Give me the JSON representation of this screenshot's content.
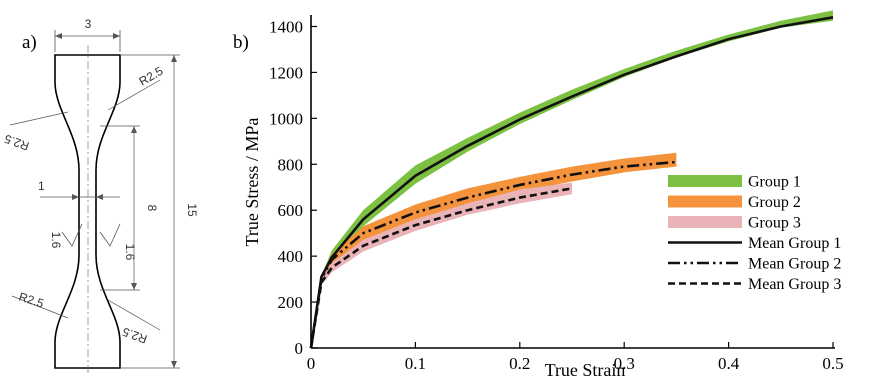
{
  "panel_a": {
    "label": "a)",
    "dims": {
      "top_width": "3",
      "neck_width": "1",
      "gauge_length": "8",
      "total_length": "15",
      "radius_upper_right": "R2.5",
      "radius_upper_left": "R2.5",
      "radius_lower_left": "R2.5",
      "radius_lower_right": "R2.5",
      "roughness_left": "1.6",
      "roughness_right": "1.6"
    }
  },
  "panel_b": {
    "label": "b)"
  },
  "colors": {
    "group1_band": "#7dc142",
    "group2_band": "#f5933c",
    "group3_band": "#e9b3b8",
    "mean_line": "#111111"
  },
  "chart_data": {
    "type": "line",
    "title": "",
    "xlabel": "True Strain",
    "ylabel": "True Stress / MPa",
    "xlim": [
      0,
      0.5
    ],
    "ylim": [
      0,
      1450
    ],
    "x_ticks": [
      "0",
      "0.1",
      "0.2",
      "0.3",
      "0.4",
      "0.5"
    ],
    "y_ticks": [
      "0",
      "200",
      "400",
      "600",
      "800",
      "1000",
      "1200",
      "1400"
    ],
    "legend_position": "bottom-right",
    "bands": [
      {
        "name": "Group 1",
        "color": "#7dc142",
        "x": [
          0.01,
          0.02,
          0.05,
          0.1,
          0.15,
          0.2,
          0.25,
          0.3,
          0.35,
          0.4,
          0.45,
          0.5
        ],
        "lower": [
          300,
          380,
          530,
          715,
          855,
          975,
          1080,
          1180,
          1265,
          1335,
          1395,
          1425
        ],
        "upper": [
          315,
          425,
          600,
          795,
          915,
          1025,
          1125,
          1215,
          1295,
          1365,
          1425,
          1470
        ]
      },
      {
        "name": "Group 2",
        "color": "#f5933c",
        "x": [
          0.01,
          0.02,
          0.05,
          0.1,
          0.15,
          0.2,
          0.25,
          0.3,
          0.35
        ],
        "lower": [
          290,
          360,
          470,
          560,
          625,
          680,
          725,
          765,
          790
        ],
        "upper": [
          315,
          410,
          530,
          625,
          695,
          745,
          790,
          825,
          850
        ]
      },
      {
        "name": "Group 3",
        "color": "#e9b3b8",
        "x": [
          0.01,
          0.02,
          0.05,
          0.1,
          0.15,
          0.2,
          0.25
        ],
        "lower": [
          275,
          330,
          420,
          510,
          580,
          630,
          670
        ],
        "upper": [
          300,
          370,
          470,
          560,
          630,
          690,
          720
        ]
      }
    ],
    "series": [
      {
        "name": "Mean Group 1",
        "style": "solid",
        "x": [
          0,
          0.01,
          0.02,
          0.05,
          0.1,
          0.15,
          0.2,
          0.25,
          0.3,
          0.35,
          0.4,
          0.45,
          0.5
        ],
        "values": [
          0,
          310,
          395,
          560,
          750,
          880,
          995,
          1095,
          1190,
          1270,
          1345,
          1400,
          1440
        ]
      },
      {
        "name": "Mean Group 2",
        "style": "dashdotdot",
        "x": [
          0,
          0.01,
          0.02,
          0.05,
          0.1,
          0.15,
          0.2,
          0.25,
          0.3,
          0.35
        ],
        "values": [
          0,
          300,
          385,
          500,
          590,
          655,
          710,
          755,
          790,
          810
        ]
      },
      {
        "name": "Mean Group 3",
        "style": "dashed",
        "x": [
          0,
          0.01,
          0.02,
          0.05,
          0.1,
          0.15,
          0.2,
          0.25
        ],
        "values": [
          0,
          285,
          350,
          445,
          535,
          600,
          655,
          695
        ]
      }
    ],
    "legend": [
      "Group 1",
      "Group 2",
      "Group 3",
      "Mean Group 1",
      "Mean Group 2",
      "Mean Group 3"
    ]
  }
}
